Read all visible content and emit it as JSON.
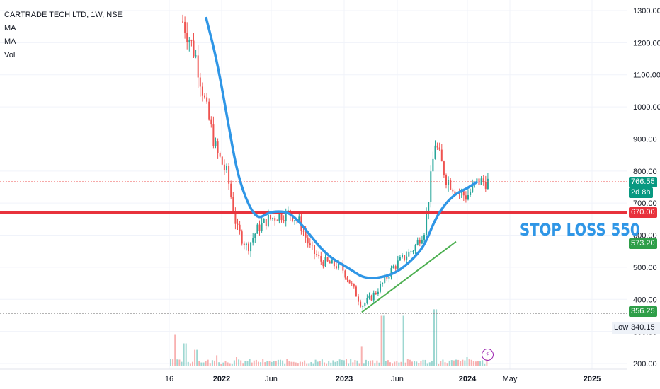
{
  "legend": {
    "title": "CARTRADE TECH LTD, 1W, NSE",
    "items": [
      "MA",
      "MA",
      "Vol"
    ]
  },
  "annotation": "STOP LOSS 550",
  "price_tags": {
    "current_price": "766.55",
    "countdown": "2d 8h",
    "level": "670.00",
    "ma_value": "573.20",
    "low_marker": "356.25",
    "low_label": "Low",
    "low_value": "340.15"
  },
  "colors": {
    "up": "#26a69a",
    "down": "#ef5350",
    "ma_line": "#2f96e6",
    "level_line": "#e8323c",
    "trendline": "#4caf50",
    "current_tag": "#089981",
    "bolt": "#9c27b0"
  },
  "icons": {
    "event_marker": "lightning-bolt-icon"
  },
  "chart_data": {
    "type": "candlestick",
    "title": "CARTRADE TECH LTD, 1W, NSE",
    "ylim": [
      195,
      1330
    ],
    "y_ticks": [
      "1300.00",
      "1200.00",
      "1100.00",
      "1000.00",
      "900.00",
      "800.00",
      "700.00",
      "600.00",
      "500.00",
      "400.00",
      "300.00",
      "200.00"
    ],
    "x_ticks": [
      "16",
      "2022",
      "Jun",
      "2023",
      "Jun",
      "2024",
      "May",
      "2025"
    ],
    "grid": true,
    "price_series": {
      "name": "Price",
      "points": [
        [
          "2021-09-01",
          1320
        ],
        [
          "2021-10-01",
          1250
        ],
        [
          "2021-11-01",
          1160
        ],
        [
          "2021-12-01",
          1000
        ],
        [
          "2022-01-01",
          860
        ],
        [
          "2022-02-01",
          790
        ],
        [
          "2022-03-01",
          620
        ],
        [
          "2022-04-01",
          560
        ],
        [
          "2022-05-01",
          620
        ],
        [
          "2022-06-01",
          650
        ],
        [
          "2022-07-01",
          660
        ],
        [
          "2022-08-01",
          670
        ],
        [
          "2022-09-01",
          640
        ],
        [
          "2022-10-01",
          560
        ],
        [
          "2022-11-01",
          520
        ],
        [
          "2022-12-01",
          510
        ],
        [
          "2023-01-01",
          500
        ],
        [
          "2023-02-01",
          440
        ],
        [
          "2023-03-01",
          380
        ],
        [
          "2023-04-01",
          410
        ],
        [
          "2023-05-01",
          450
        ],
        [
          "2023-06-01",
          500
        ],
        [
          "2023-07-01",
          530
        ],
        [
          "2023-08-01",
          560
        ],
        [
          "2023-09-01",
          620
        ],
        [
          "2023-10-01",
          890
        ],
        [
          "2023-11-01",
          780
        ],
        [
          "2023-12-01",
          740
        ],
        [
          "2024-01-01",
          720
        ],
        [
          "2024-02-01",
          766.55
        ]
      ]
    },
    "moving_average": {
      "name": "MA",
      "points": [
        [
          "2021-12-01",
          1280
        ],
        [
          "2022-01-01",
          1150
        ],
        [
          "2022-02-01",
          970
        ],
        [
          "2022-03-01",
          800
        ],
        [
          "2022-04-01",
          700
        ],
        [
          "2022-05-01",
          650
        ],
        [
          "2022-06-01",
          670
        ],
        [
          "2022-07-01",
          675
        ],
        [
          "2022-08-01",
          670
        ],
        [
          "2022-09-01",
          640
        ],
        [
          "2022-10-01",
          600
        ],
        [
          "2022-11-01",
          560
        ],
        [
          "2022-12-01",
          530
        ],
        [
          "2023-01-01",
          510
        ],
        [
          "2023-02-01",
          490
        ],
        [
          "2023-03-01",
          470
        ],
        [
          "2023-04-01",
          465
        ],
        [
          "2023-05-01",
          470
        ],
        [
          "2023-06-01",
          480
        ],
        [
          "2023-07-01",
          500
        ],
        [
          "2023-08-01",
          530
        ],
        [
          "2023-09-01",
          570
        ],
        [
          "2023-10-01",
          650
        ],
        [
          "2023-11-01",
          700
        ],
        [
          "2023-12-01",
          730
        ],
        [
          "2024-01-01",
          745
        ],
        [
          "2024-02-01",
          766.55
        ]
      ]
    },
    "horizontal_levels": [
      {
        "value": 670,
        "style": "solid"
      },
      {
        "value": 766.55,
        "style": "dotted"
      },
      {
        "value": 356.25,
        "style": "dotted"
      }
    ],
    "trendline": [
      [
        "2023-03-01",
        360
      ],
      [
        "2023-12-01",
        580
      ]
    ],
    "volume": {
      "name": "Vol",
      "bars": [
        [
          "2021-08-16",
          0.95
        ],
        [
          "2021-09-01",
          0.35
        ],
        [
          "2021-10-01",
          0.25
        ],
        [
          "2021-11-01",
          0.18
        ],
        [
          "2022-01-01",
          0.12
        ],
        [
          "2022-03-01",
          0.1
        ],
        [
          "2022-06-01",
          0.06
        ],
        [
          "2022-09-01",
          0.05
        ],
        [
          "2023-01-01",
          0.07
        ],
        [
          "2023-03-01",
          0.22
        ],
        [
          "2023-05-01",
          0.55
        ],
        [
          "2023-07-01",
          0.55
        ],
        [
          "2023-10-01",
          0.62
        ],
        [
          "2024-01-01",
          0.1
        ]
      ]
    }
  }
}
